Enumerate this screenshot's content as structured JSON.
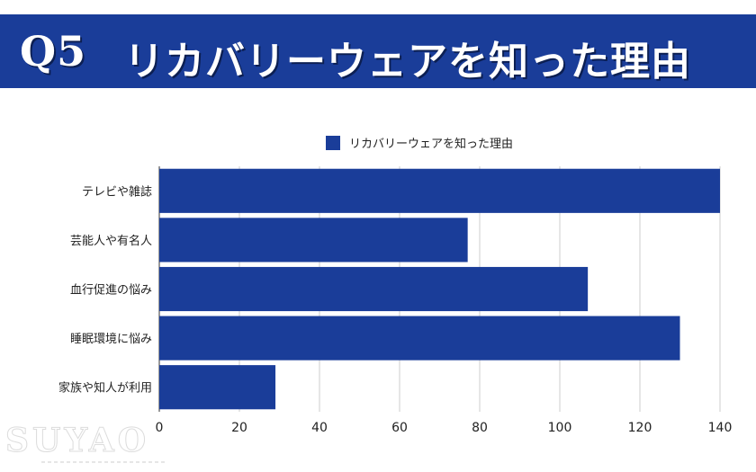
{
  "header": {
    "q_label": "Q5",
    "title": "リカバリーウェアを知った理由"
  },
  "watermark": {
    "text": "SUYAO"
  },
  "colors": {
    "banner": "#1a3d99",
    "bar": "#1a3d99",
    "grid": "#cccccc"
  },
  "chart_data": {
    "type": "bar",
    "orientation": "horizontal",
    "categories": [
      "テレビや雑誌",
      "芸能人や有名人",
      "血行促進の悩み",
      "睡眠環境に悩み",
      "家族や知人が利用"
    ],
    "series": [
      {
        "name": "リカバリーウェアを知った理由",
        "values": [
          140,
          77,
          107,
          130,
          29
        ]
      }
    ],
    "xlim": [
      0,
      140
    ],
    "xticks": [
      0,
      20,
      40,
      60,
      80,
      100,
      120,
      140
    ],
    "legend": "top-center",
    "grid": true
  }
}
